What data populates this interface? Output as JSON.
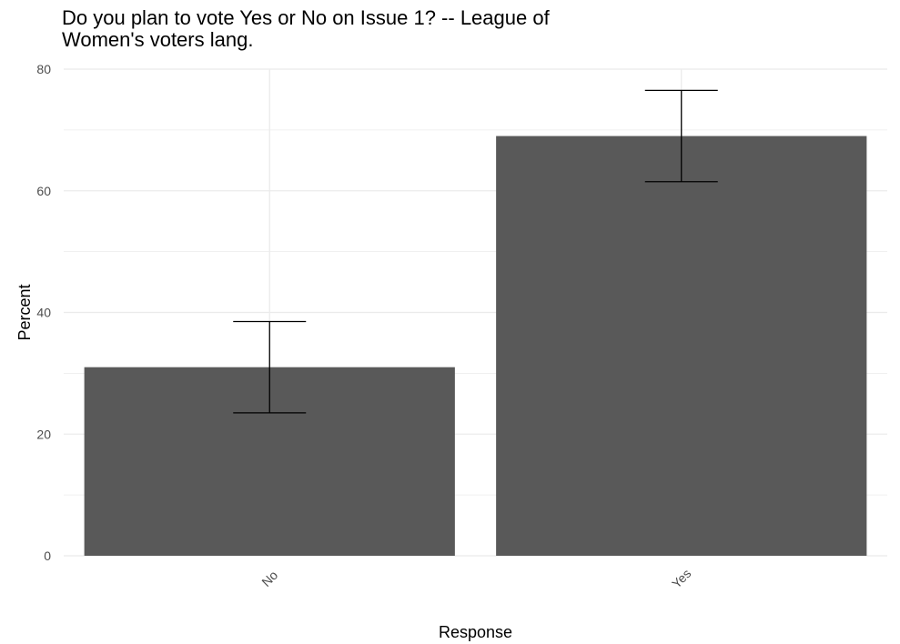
{
  "chart_data": {
    "type": "bar",
    "title": "Do you plan to vote Yes or No on Issue 1? -- League of Women's voters lang.",
    "title_lines": [
      "Do you plan to vote Yes or No on Issue 1? -- League of",
      "Women's voters lang."
    ],
    "xlabel": "Response",
    "ylabel": "Percent",
    "categories": [
      "No",
      "Yes"
    ],
    "values": [
      31,
      69
    ],
    "error_bars": [
      {
        "lower": 23.5,
        "upper": 38.5
      },
      {
        "lower": 61.5,
        "upper": 76.5
      }
    ],
    "ylim": [
      0,
      80
    ],
    "yticks": [
      0,
      20,
      40,
      60,
      80
    ],
    "grid": true,
    "bar_color": "#595959",
    "grid_color": "#ebebeb",
    "errorbar_color": "#000000"
  }
}
